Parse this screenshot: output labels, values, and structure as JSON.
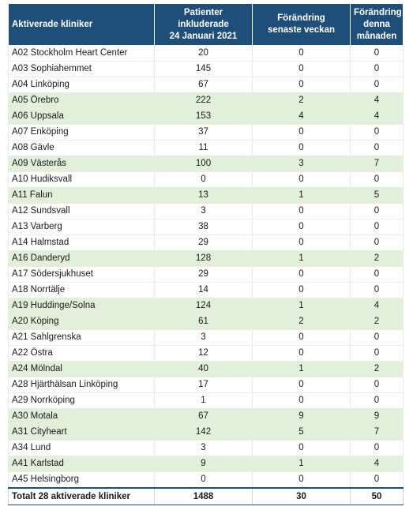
{
  "header": {
    "col1": "Aktiverade kliniker",
    "col2": [
      "Patienter",
      "inkluderade",
      "24 Januari 2021"
    ],
    "col3": [
      "Förändring",
      "senaste veckan"
    ],
    "col4": [
      "Förändring",
      "denna",
      "månaden"
    ]
  },
  "rows": [
    {
      "clinic": "A02 Stockholm Heart Center",
      "patients": "20",
      "week": "0",
      "month": "0",
      "shaded": false
    },
    {
      "clinic": "A03 Sophiahemmet",
      "patients": "145",
      "week": "0",
      "month": "0",
      "shaded": false
    },
    {
      "clinic": "A04 Linköping",
      "patients": "67",
      "week": "0",
      "month": "0",
      "shaded": false
    },
    {
      "clinic": "A05 Örebro",
      "patients": "222",
      "week": "2",
      "month": "4",
      "shaded": true
    },
    {
      "clinic": "A06 Uppsala",
      "patients": "153",
      "week": "4",
      "month": "4",
      "shaded": true
    },
    {
      "clinic": "A07 Enköping",
      "patients": "37",
      "week": "0",
      "month": "0",
      "shaded": false
    },
    {
      "clinic": "A08 Gävle",
      "patients": "11",
      "week": "0",
      "month": "0",
      "shaded": false
    },
    {
      "clinic": "A09 Västerås",
      "patients": "100",
      "week": "3",
      "month": "7",
      "shaded": true
    },
    {
      "clinic": "A10 Hudiksvall",
      "patients": "0",
      "week": "0",
      "month": "0",
      "shaded": false
    },
    {
      "clinic": "A11 Falun",
      "patients": "13",
      "week": "1",
      "month": "5",
      "shaded": true
    },
    {
      "clinic": "A12 Sundsvall",
      "patients": "3",
      "week": "0",
      "month": "0",
      "shaded": false
    },
    {
      "clinic": "A13 Varberg",
      "patients": "38",
      "week": "0",
      "month": "0",
      "shaded": false
    },
    {
      "clinic": "A14 Halmstad",
      "patients": "29",
      "week": "0",
      "month": "0",
      "shaded": false
    },
    {
      "clinic": "A16 Danderyd",
      "patients": "128",
      "week": "1",
      "month": "2",
      "shaded": true
    },
    {
      "clinic": "A17 Södersjukhuset",
      "patients": "29",
      "week": "0",
      "month": "0",
      "shaded": false
    },
    {
      "clinic": "A18 Norrtälje",
      "patients": "14",
      "week": "0",
      "month": "0",
      "shaded": false
    },
    {
      "clinic": "A19 Huddinge/Solna",
      "patients": "124",
      "week": "1",
      "month": "4",
      "shaded": true
    },
    {
      "clinic": "A20 Köping",
      "patients": "61",
      "week": "2",
      "month": "2",
      "shaded": true
    },
    {
      "clinic": "A21 Sahlgrenska",
      "patients": "3",
      "week": "0",
      "month": "0",
      "shaded": false
    },
    {
      "clinic": "A22 Östra",
      "patients": "12",
      "week": "0",
      "month": "0",
      "shaded": false
    },
    {
      "clinic": "A24 Mölndal",
      "patients": "40",
      "week": "1",
      "month": "2",
      "shaded": true
    },
    {
      "clinic": "A28 Hjärthälsan Linköping",
      "patients": "17",
      "week": "0",
      "month": "0",
      "shaded": false
    },
    {
      "clinic": "A29 Norrköping",
      "patients": "1",
      "week": "0",
      "month": "0",
      "shaded": false
    },
    {
      "clinic": "A30 Motala",
      "patients": "67",
      "week": "9",
      "month": "9",
      "shaded": true
    },
    {
      "clinic": "A31 Cityheart",
      "patients": "142",
      "week": "5",
      "month": "7",
      "shaded": true
    },
    {
      "clinic": "A34 Lund",
      "patients": "3",
      "week": "0",
      "month": "0",
      "shaded": false
    },
    {
      "clinic": "A41 Karlstad",
      "patients": "9",
      "week": "1",
      "month": "4",
      "shaded": true
    },
    {
      "clinic": "A45 Helsingborg",
      "patients": "0",
      "week": "0",
      "month": "0",
      "shaded": false
    }
  ],
  "total": {
    "label": "Totalt 28 aktiverade kliniker",
    "patients": "1488",
    "week": "30",
    "month": "50"
  }
}
